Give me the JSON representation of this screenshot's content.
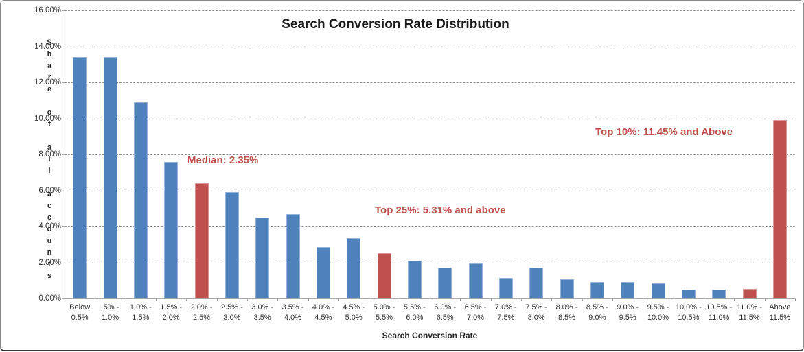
{
  "chart_data": {
    "type": "bar",
    "title": "Search Conversion Rate Distribution",
    "xlabel": "Search Conversion Rate",
    "ylabel": "Share of all accounts",
    "ylim": [
      0,
      16
    ],
    "y_tick_step": 2,
    "y_tick_labels": [
      "0.00%",
      "2.00%",
      "4.00%",
      "6.00%",
      "8.00%",
      "10.00%",
      "12.00%",
      "14.00%",
      "16.00%"
    ],
    "grid": "horizontal-dashed",
    "legend": "none",
    "categories": [
      "Below\n0.5%",
      ".5% -\n1.0%",
      "1.0% -\n1.5%",
      "1.5% -\n2.0%",
      "2.0% -\n2.5%",
      "2.5% -\n3.0%",
      "3.0% -\n3.5%",
      "3.5% -\n4.0%",
      "4.0% -\n4.5%",
      "4.5% -\n5.0%",
      "5.0% -\n5.5%",
      "5.5% -\n6.0%",
      "6.0% -\n6.5%",
      "6.5% -\n7.0%",
      "7.0% -\n7.5%",
      "7.5% -\n8.0%",
      "8.0% -\n8.5%",
      "8.5% -\n9.0%",
      "9.0% -\n9.5%",
      "9.5% -\n10.0%",
      "10.0% -\n10.5%",
      "10.5% -\n11.0%",
      "11.0% -\n11.5%",
      "Above\n11.5%"
    ],
    "values": [
      13.4,
      13.4,
      10.9,
      7.6,
      6.4,
      5.9,
      4.5,
      4.7,
      2.85,
      3.35,
      2.5,
      2.1,
      1.7,
      1.95,
      1.15,
      1.7,
      1.05,
      0.9,
      0.9,
      0.85,
      0.5,
      0.5,
      0.55,
      9.9
    ],
    "highlighted_bar_indices": [
      4,
      10,
      22,
      23
    ],
    "annotations": [
      {
        "text": "Median: 2.35%"
      },
      {
        "text": "Top 25%: 5.31% and above"
      },
      {
        "text": "Top 10%: 11.45% and Above"
      }
    ],
    "colors": {
      "bar_default": "#4f81bd",
      "bar_highlight": "#c0504d",
      "annotation_text": "#c0504d",
      "gridline": "#8c8c8c",
      "axis": "#a6a6a6",
      "title_text": "#1a1a1a"
    }
  }
}
